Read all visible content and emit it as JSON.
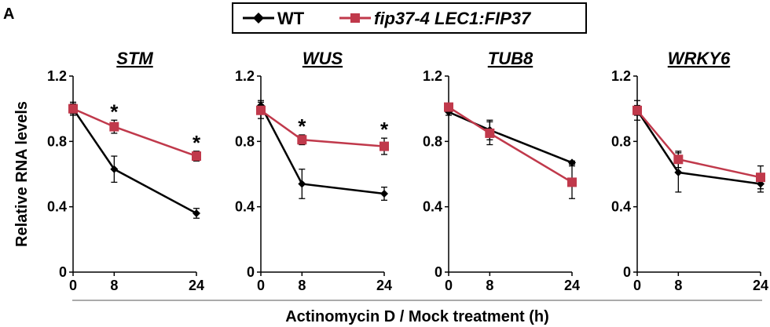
{
  "figure": {
    "panel_label": "A",
    "shared_ylabel": "Relative RNA levels",
    "shared_xlabel": "Actinomycin D / Mock treatment (h)",
    "legend": [
      {
        "name": "WT",
        "color": "#000000",
        "marker": "diamond",
        "italic": false
      },
      {
        "name": "fip37-4 LEC1:FIP37",
        "color": "#c0394b",
        "marker": "square",
        "italic": true
      }
    ]
  },
  "chart_data": [
    {
      "type": "line",
      "title": "STM",
      "x": [
        0,
        8,
        24
      ],
      "xticklabels": [
        "0",
        "8",
        "24"
      ],
      "ylim": [
        0,
        1.2
      ],
      "yticks": [
        "0",
        "0.4",
        "0.8",
        "1.2"
      ],
      "series": [
        {
          "name": "WT",
          "values": [
            1.0,
            0.63,
            0.36
          ],
          "errors": [
            0.04,
            0.08,
            0.03
          ]
        },
        {
          "name": "fip37-4 LEC1:FIP37",
          "values": [
            1.0,
            0.89,
            0.71
          ],
          "errors": [
            0.03,
            0.04,
            0.03
          ]
        }
      ],
      "significance": [
        "",
        "*",
        "*"
      ]
    },
    {
      "type": "line",
      "title": "WUS",
      "x": [
        0,
        8,
        24
      ],
      "xticklabels": [
        "0",
        "8",
        "24"
      ],
      "ylim": [
        0,
        1.2
      ],
      "yticks": [
        "0",
        "0.4",
        "0.8",
        "1.2"
      ],
      "series": [
        {
          "name": "WT",
          "values": [
            1.02,
            0.54,
            0.48
          ],
          "errors": [
            0.03,
            0.09,
            0.04
          ]
        },
        {
          "name": "fip37-4 LEC1:FIP37",
          "values": [
            0.99,
            0.81,
            0.77
          ],
          "errors": [
            0.05,
            0.03,
            0.05
          ]
        }
      ],
      "significance": [
        "",
        "*",
        "*"
      ]
    },
    {
      "type": "line",
      "title": "TUB8",
      "x": [
        0,
        8,
        24
      ],
      "xticklabels": [
        "0",
        "8",
        "24"
      ],
      "ylim": [
        0,
        1.2
      ],
      "yticks": [
        "0",
        "0.4",
        "0.8",
        "1.2"
      ],
      "series": [
        {
          "name": "WT",
          "values": [
            0.98,
            0.87,
            0.67
          ],
          "errors": [
            0.02,
            0.06,
            0.01
          ]
        },
        {
          "name": "fip37-4 LEC1:FIP37",
          "values": [
            1.01,
            0.85,
            0.55
          ],
          "errors": [
            0.02,
            0.07,
            0.1
          ]
        }
      ],
      "significance": [
        "",
        "",
        ""
      ]
    },
    {
      "type": "line",
      "title": "WRKY6",
      "x": [
        0,
        8,
        24
      ],
      "xticklabels": [
        "0",
        "8",
        "24"
      ],
      "ylim": [
        0,
        1.2
      ],
      "yticks": [
        "0",
        "0.4",
        "0.8",
        "1.2"
      ],
      "series": [
        {
          "name": "WT",
          "values": [
            0.99,
            0.61,
            0.54
          ],
          "errors": [
            0.06,
            0.12,
            0.05
          ]
        },
        {
          "name": "fip37-4 LEC1:FIP37",
          "values": [
            0.99,
            0.69,
            0.58
          ],
          "errors": [
            0.03,
            0.05,
            0.07
          ]
        }
      ],
      "significance": [
        "",
        "",
        ""
      ]
    }
  ]
}
